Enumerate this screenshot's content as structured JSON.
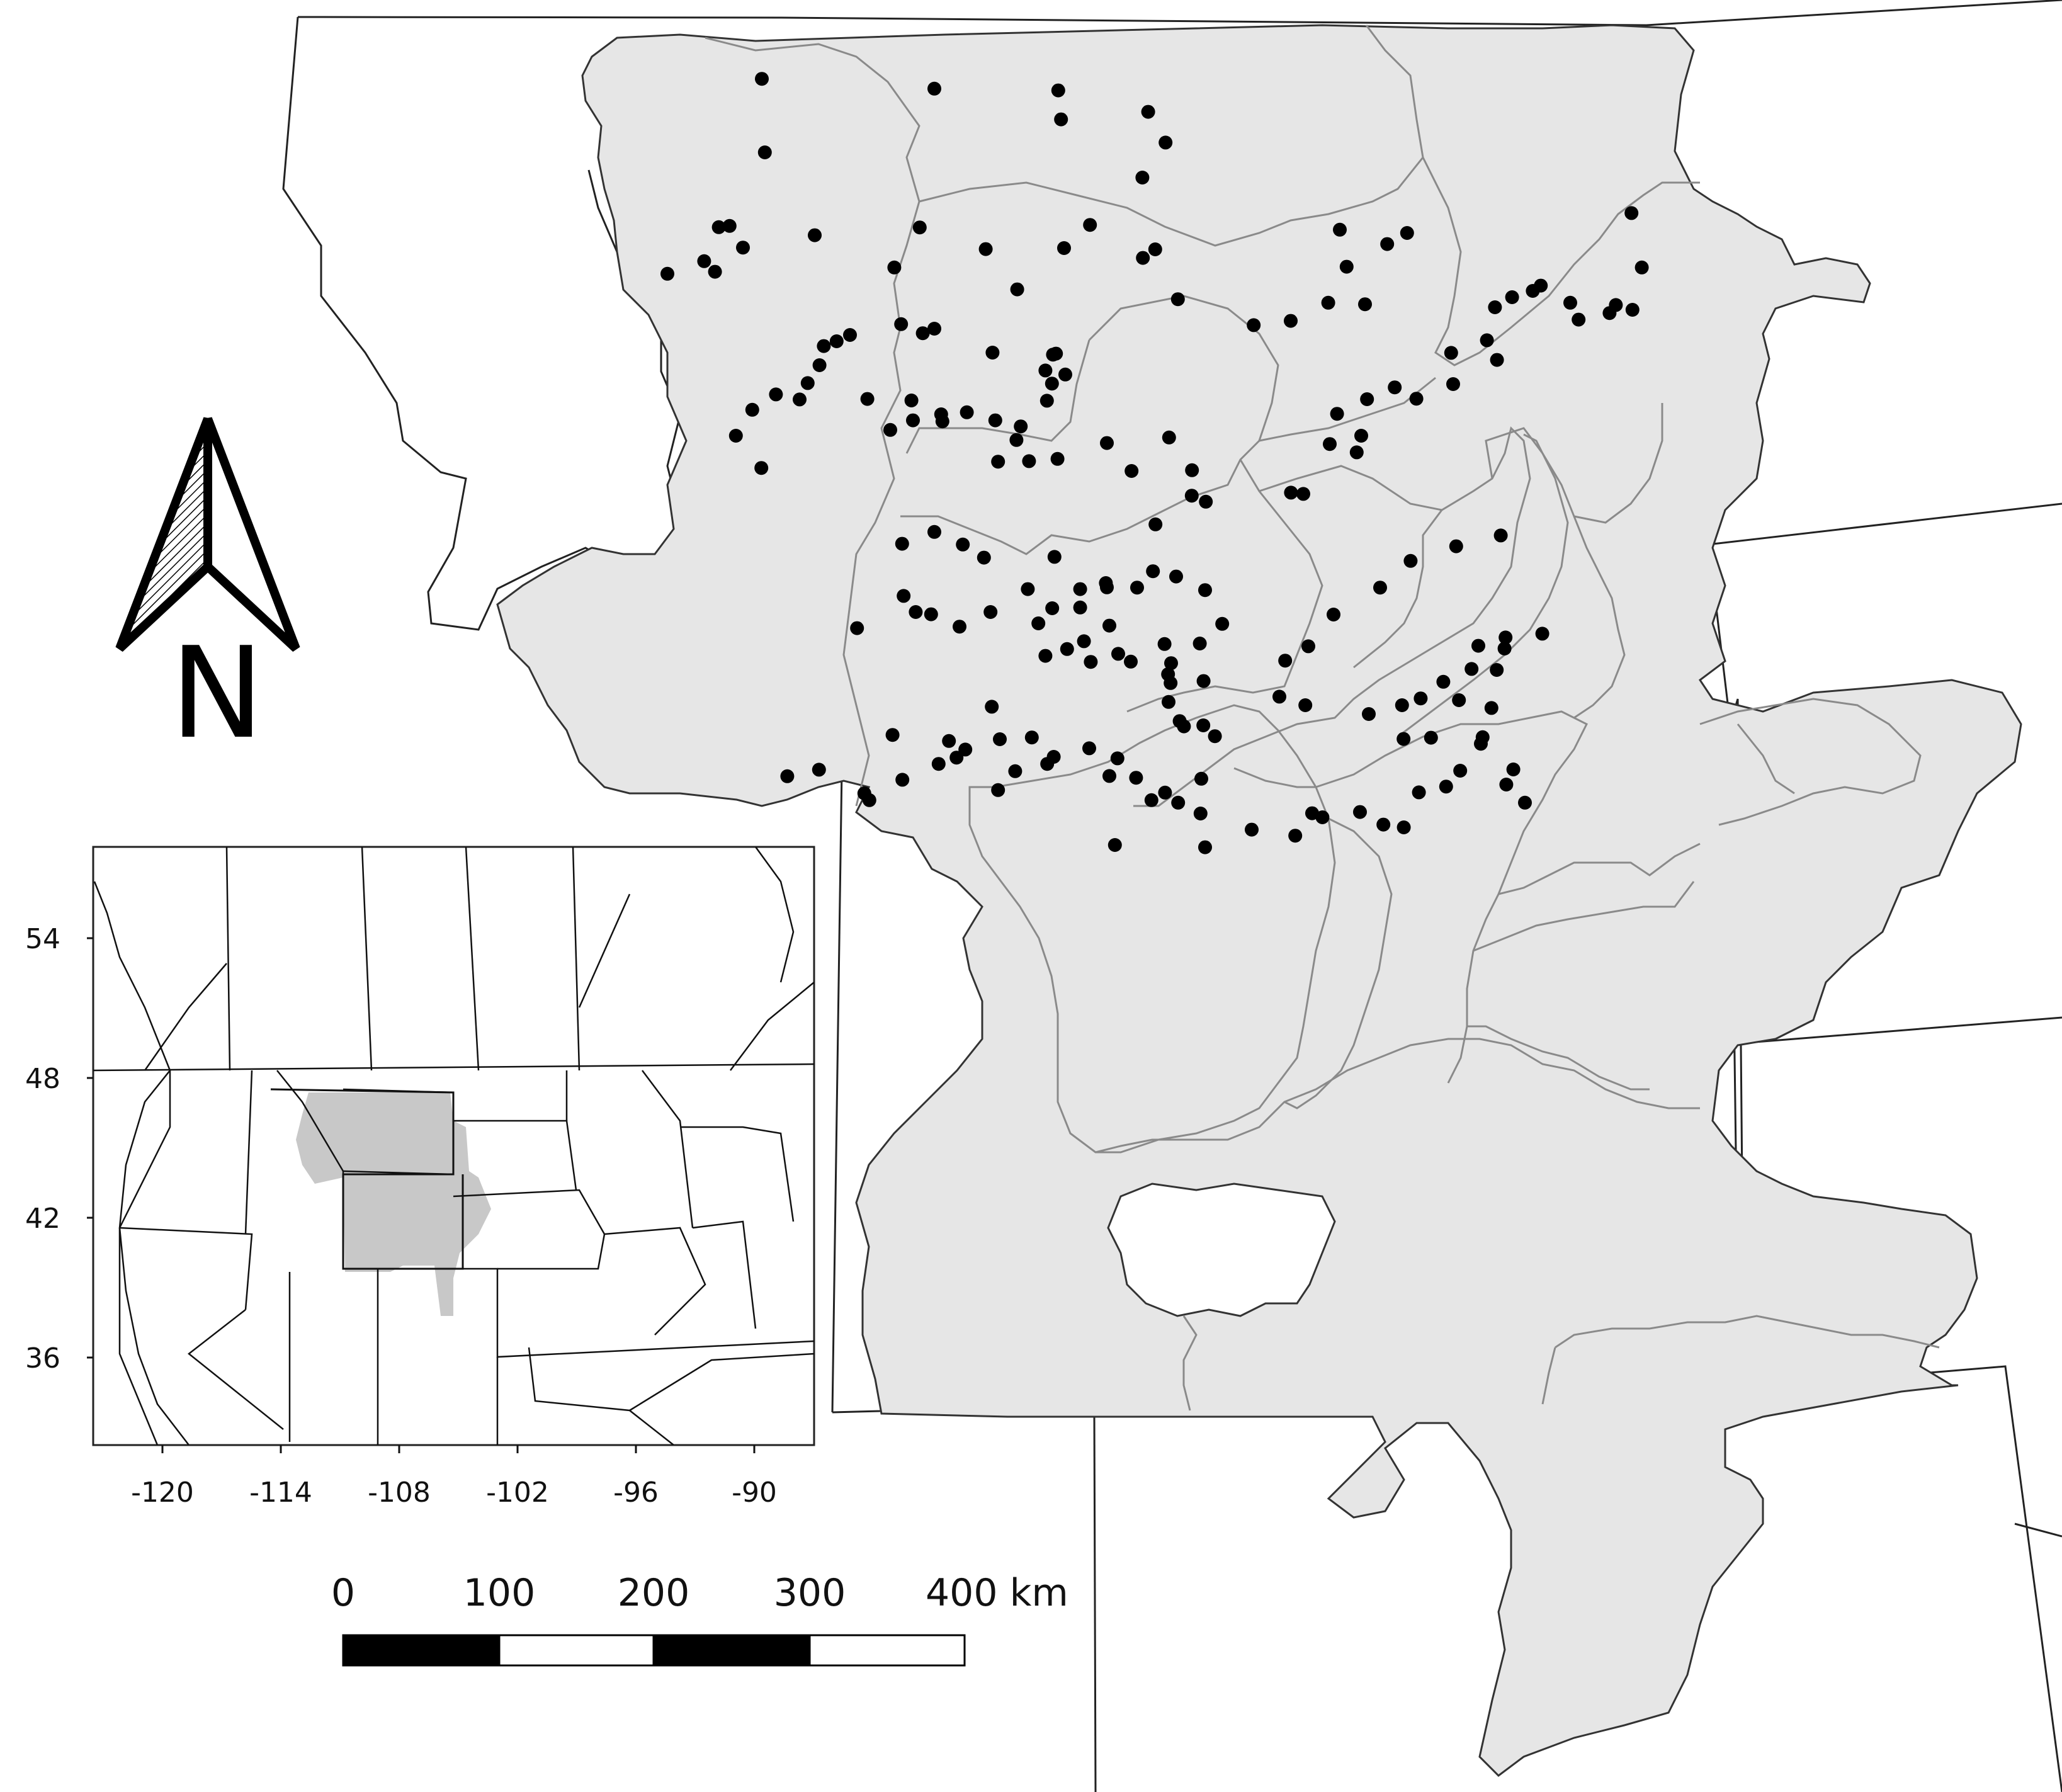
{
  "colors": {
    "basin_fill": "#e6e6e6",
    "basin_stroke": "#333333",
    "sub_basin_stroke": "#8a8a8a",
    "boundary_stroke": "#222222",
    "site_marker": "#000000",
    "inset_highlight": "#c8c8c8"
  },
  "icons": {
    "north_arrow": "north-arrow-icon",
    "site_marker": "filled-circle"
  },
  "north_arrow": {
    "letter": "N"
  },
  "scale_bar": {
    "unit": "km",
    "labels": [
      "0",
      "100",
      "200",
      "300",
      "400 km"
    ],
    "segment_colors": [
      "#000000",
      "#ffffff",
      "#000000",
      "#ffffff"
    ]
  },
  "inset": {
    "y_ticks": [
      "54",
      "48",
      "42",
      "36"
    ],
    "x_ticks": [
      "-120",
      "-114",
      "-108",
      "-102",
      "-96",
      "-90"
    ]
  },
  "sites": [
    [
      1.77,
      43.8
    ],
    [
      -13.53,
      19.22
    ],
    [
      -12.13,
      16.3
    ],
    [
      -12.25,
      13.38
    ],
    [
      -11.23,
      7.57
    ],
    [
      -7.91,
      8.03
    ],
    [
      -5.4,
      13.77
    ],
    [
      -0.48,
      13.84
    ],
    [
      -0.37,
      14.99
    ],
    [
      3.09,
      14.69
    ],
    [
      3.78,
      15.91
    ],
    [
      -16.0,
      21.12
    ],
    [
      -14.54,
      20.62
    ],
    [
      -14.11,
      21.04
    ],
    [
      -13.96,
      19.27
    ],
    [
      -13.0,
      20.08
    ],
    [
      -10.15,
      19.59
    ],
    [
      -6.99,
      20.87
    ],
    [
      -3.36,
      20.14
    ],
    [
      0.78,
      19.18
    ],
    [
      2.86,
      17.3
    ],
    [
      -5.98,
      19.28
    ],
    [
      -0.25,
      20.1
    ],
    [
      2.88,
      20.49
    ],
    [
      3.37,
      20.15
    ],
    [
      -2.11,
      21.74
    ],
    [
      4.27,
      22.13
    ],
    [
      -6.72,
      23.12
    ],
    [
      -5.4,
      23.3
    ],
    [
      -5.86,
      23.48
    ],
    [
      -3.09,
      24.25
    ],
    [
      -0.99,
      24.96
    ],
    [
      -0.69,
      24.33
    ],
    [
      -0.57,
      24.29
    ],
    [
      -0.73,
      25.48
    ],
    [
      -2.14,
      27.72
    ],
    [
      1.45,
      27.84
    ],
    [
      3.92,
      27.62
    ],
    [
      -8.06,
      26.09
    ],
    [
      -6.31,
      26.15
    ],
    [
      -5.08,
      26.98
    ],
    [
      -2.87,
      28.58
    ],
    [
      -1.64,
      28.56
    ],
    [
      -0.51,
      28.47
    ],
    [
      2.43,
      28.95
    ],
    [
      4.83,
      28.92
    ],
    [
      4.82,
      29.93
    ],
    [
      5.38,
      30.17
    ],
    [
      3.38,
      31.07
    ],
    [
      -0.63,
      32.36
    ],
    [
      0.39,
      34.37
    ],
    [
      1.55,
      35.09
    ],
    [
      3.98,
      37.37
    ],
    [
      4.51,
      39.09
    ],
    [
      -6.68,
      31.84
    ],
    [
      -5.4,
      31.37
    ],
    [
      -4.27,
      31.87
    ],
    [
      -3.43,
      32.39
    ],
    [
      -1.69,
      33.64
    ],
    [
      0.39,
      33.64
    ],
    [
      -0.72,
      34.4
    ],
    [
      -0.13,
      36.02
    ],
    [
      1.41,
      33.4
    ],
    [
      3.28,
      32.93
    ],
    [
      4.2,
      33.14
    ],
    [
      5.35,
      33.68
    ],
    [
      -8.47,
      35.19
    ],
    [
      -6.62,
      33.91
    ],
    [
      -6.14,
      34.55
    ],
    [
      -5.53,
      34.64
    ],
    [
      -4.4,
      35.13
    ],
    [
      -3.17,
      34.55
    ],
    [
      -1.27,
      35.0
    ],
    [
      0.54,
      35.71
    ],
    [
      1.45,
      33.57
    ],
    [
      2.65,
      33.58
    ],
    [
      -3.12,
      38.31
    ],
    [
      -0.99,
      36.29
    ],
    [
      0.81,
      36.53
    ],
    [
      1.9,
      36.21
    ],
    [
      2.4,
      36.52
    ],
    [
      4.0,
      36.58
    ],
    [
      5.29,
      37.29
    ],
    [
      4.34,
      38.88
    ],
    [
      5.28,
      39.05
    ],
    [
      5.74,
      39.48
    ],
    [
      3.88,
      37.02
    ],
    [
      3.9,
      38.12
    ],
    [
      -7.06,
      39.43
    ],
    [
      -4.82,
      39.67
    ],
    [
      -4.17,
      40.01
    ],
    [
      -2.19,
      40.87
    ],
    [
      -1.53,
      39.53
    ],
    [
      -0.92,
      40.58
    ],
    [
      -0.66,
      40.3
    ],
    [
      1.55,
      41.06
    ],
    [
      3.22,
      42.02
    ],
    [
      -11.24,
      41.07
    ],
    [
      -9.98,
      40.81
    ],
    [
      -8.18,
      41.75
    ],
    [
      -7.98,
      42.02
    ],
    [
      -6.67,
      41.21
    ],
    [
      -5.23,
      40.58
    ],
    [
      -4.52,
      40.33
    ],
    [
      -2.8,
      39.6
    ],
    [
      -2.87,
      41.62
    ],
    [
      0.75,
      39.96
    ],
    [
      1.87,
      40.36
    ],
    [
      2.61,
      41.13
    ],
    [
      3.76,
      41.72
    ],
    [
      4.28,
      42.12
    ],
    [
      5.17,
      42.55
    ],
    [
      5.2,
      41.17
    ],
    [
      5.35,
      43.89
    ],
    [
      7.2,
      43.19
    ],
    [
      8.93,
      43.43
    ],
    [
      9.6,
      42.54
    ],
    [
      10.01,
      42.7
    ],
    [
      11.5,
      42.49
    ],
    [
      12.43,
      42.99
    ],
    [
      13.24,
      43.1
    ],
    [
      13.84,
      41.71
    ],
    [
      14.92,
      41.48
    ],
    [
      15.48,
      40.85
    ],
    [
      16.37,
      39.52
    ],
    [
      16.72,
      38.36
    ],
    [
      16.93,
      36.85
    ],
    [
      17.24,
      36.0
    ],
    [
      17.28,
      35.56
    ],
    [
      18.74,
      35.41
    ],
    [
      13.17,
      38.25
    ],
    [
      13.91,
      37.98
    ],
    [
      15.43,
      38.05
    ],
    [
      16.3,
      39.78
    ],
    [
      17.59,
      40.8
    ],
    [
      17.31,
      41.4
    ],
    [
      18.05,
      42.12
    ],
    [
      8.3,
      37.91
    ],
    [
      9.33,
      38.25
    ],
    [
      11.85,
      38.6
    ],
    [
      13.23,
      39.59
    ],
    [
      14.32,
      39.54
    ],
    [
      14.81,
      37.32
    ],
    [
      15.93,
      36.81
    ],
    [
      16.2,
      35.89
    ],
    [
      3.74,
      35.82
    ],
    [
      5.14,
      35.8
    ],
    [
      6.03,
      35.02
    ],
    [
      8.53,
      36.48
    ],
    [
      9.45,
      35.91
    ],
    [
      10.45,
      34.65
    ],
    [
      12.3,
      33.58
    ],
    [
      13.51,
      32.52
    ],
    [
      15.32,
      31.94
    ],
    [
      17.09,
      31.51
    ],
    [
      8.76,
      29.81
    ],
    [
      9.25,
      29.86
    ],
    [
      10.3,
      27.88
    ],
    [
      10.59,
      26.68
    ],
    [
      11.37,
      28.21
    ],
    [
      11.55,
      27.55
    ],
    [
      11.78,
      26.1
    ],
    [
      12.88,
      25.63
    ],
    [
      13.74,
      26.08
    ],
    [
      15.2,
      25.5
    ],
    [
      15.12,
      24.26
    ],
    [
      16.54,
      23.76
    ],
    [
      16.94,
      24.54
    ],
    [
      7.28,
      23.16
    ],
    [
      8.75,
      22.99
    ],
    [
      10.24,
      22.27
    ],
    [
      11.7,
      22.33
    ],
    [
      10.97,
      20.84
    ],
    [
      10.7,
      19.37
    ],
    [
      12.58,
      19.94
    ],
    [
      13.37,
      19.5
    ],
    [
      16.86,
      22.45
    ],
    [
      17.54,
      22.05
    ],
    [
      18.36,
      21.8
    ],
    [
      18.68,
      21.59
    ],
    [
      19.85,
      22.27
    ],
    [
      20.18,
      22.94
    ],
    [
      21.41,
      22.68
    ],
    [
      21.66,
      22.36
    ],
    [
      22.32,
      22.55
    ],
    [
      22.69,
      20.87
    ],
    [
      22.28,
      18.71
    ],
    [
      -8.75,
      23.55
    ],
    [
      -9.28,
      23.8
    ],
    [
      -9.79,
      23.99
    ],
    [
      -9.96,
      24.75
    ],
    [
      -10.43,
      25.46
    ],
    [
      -10.75,
      26.11
    ],
    [
      -11.69,
      25.91
    ],
    [
      -12.63,
      26.52
    ],
    [
      -13.28,
      27.55
    ],
    [
      -12.27,
      28.83
    ],
    [
      -7.15,
      27.32
    ],
    [
      -6.25,
      26.94
    ],
    [
      -5.13,
      26.7
    ],
    [
      -4.11,
      26.62
    ],
    [
      -2.98,
      26.94
    ],
    [
      -1.97,
      27.18
    ],
    [
      -0.93,
      26.16
    ],
    [
      -0.2,
      25.12
    ]
  ]
}
